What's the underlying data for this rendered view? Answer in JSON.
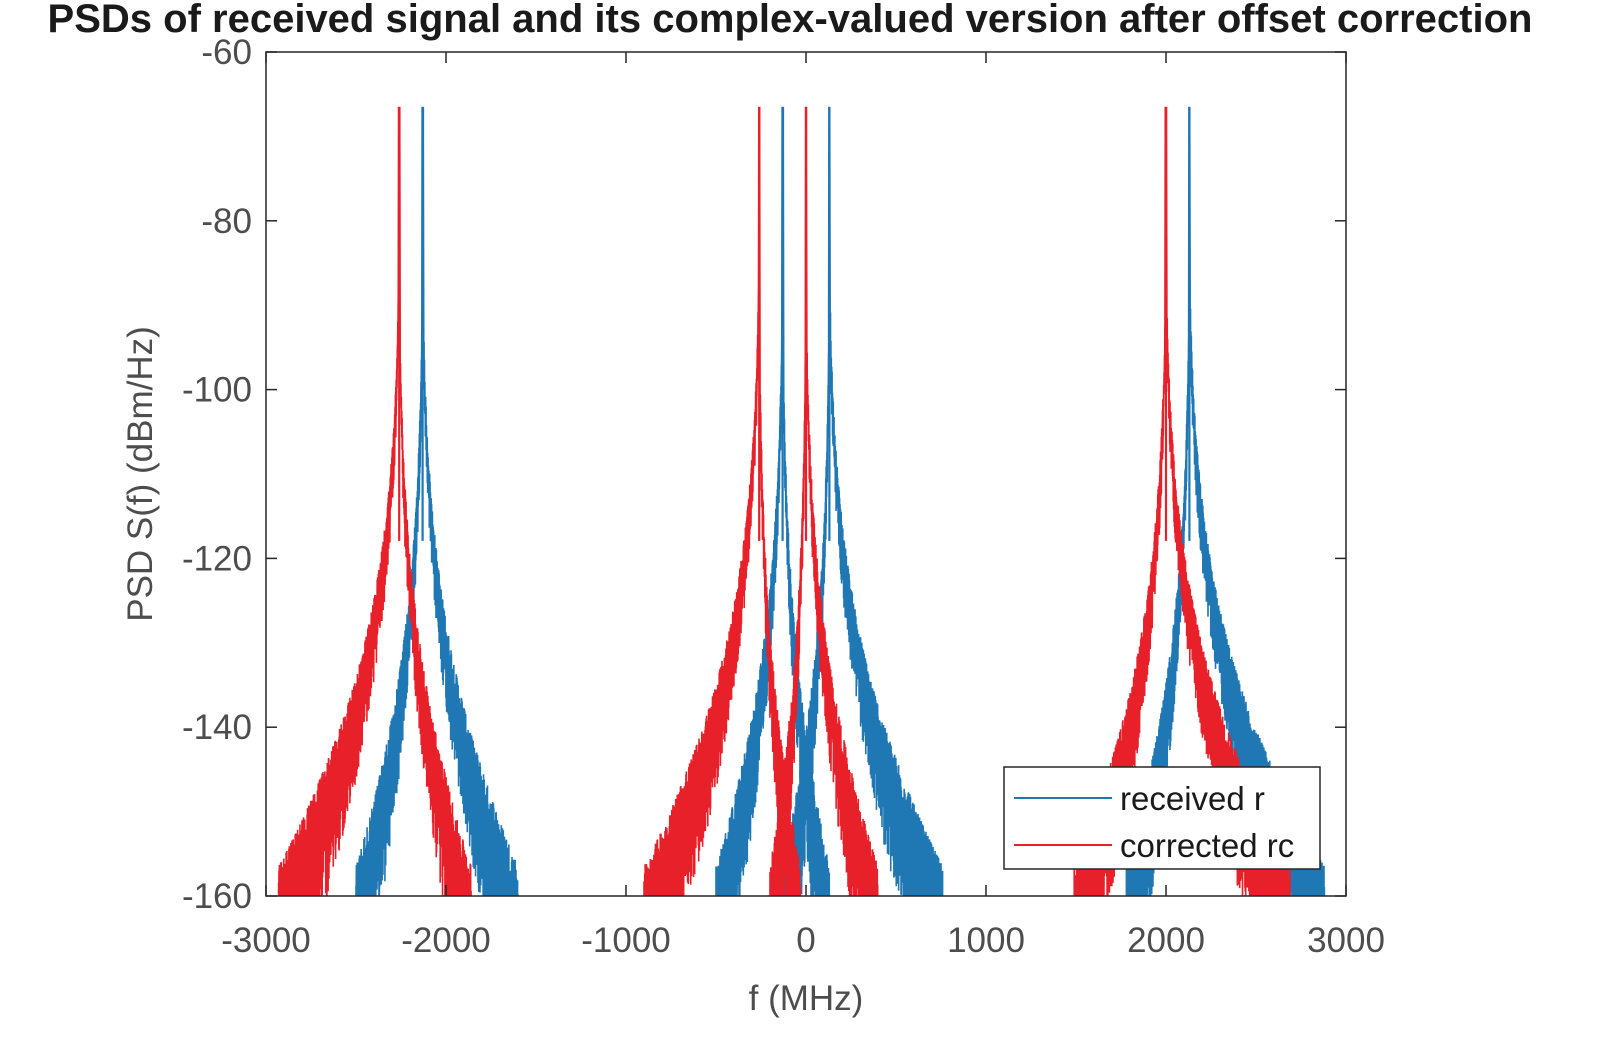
{
  "chart_data": {
    "type": "line",
    "title": "PSDs of received signal and its complex-valued version after offset correction",
    "xlabel": "f (MHz)",
    "ylabel": "PSD S(f) (dBm/Hz)",
    "xlim": [
      -3000,
      3000
    ],
    "ylim": [
      -160,
      -60
    ],
    "xticks": [
      -3000,
      -2000,
      -1000,
      0,
      1000,
      2000,
      3000
    ],
    "yticks": [
      -60,
      -80,
      -100,
      -120,
      -140,
      -160
    ],
    "xtick_labels": [
      "-3000",
      "-2000",
      "-1000",
      "0",
      "1000",
      "2000",
      "3000"
    ],
    "ytick_labels": [
      "-60",
      "-80",
      "-100",
      "-120",
      "-140",
      "-160"
    ],
    "grid": false,
    "legend_position": "bottom-right",
    "series": [
      {
        "name": "received r",
        "color": "#1f77b4",
        "peaks": [
          {
            "center": -2130,
            "peak": -66.5,
            "left_floor": -2500,
            "right_floor": -1600
          },
          {
            "center": -130,
            "peak": -66.5,
            "left_floor": -500,
            "right_floor": 130
          },
          {
            "center": 130,
            "peak": -66.5,
            "left_floor": -130,
            "right_floor": 760
          },
          {
            "center": 2130,
            "peak": -66.5,
            "left_floor": 1780,
            "right_floor": 2880
          }
        ]
      },
      {
        "name": "corrected rc",
        "color": "#e8202a",
        "peaks": [
          {
            "center": -2260,
            "peak": -66.5,
            "left_floor": -2930,
            "right_floor": -1860
          },
          {
            "center": -260,
            "peak": -66.5,
            "left_floor": -900,
            "right_floor": -30
          },
          {
            "center": 0,
            "peak": -66.5,
            "left_floor": -200,
            "right_floor": 400
          },
          {
            "center": 2000,
            "peak": -66.5,
            "left_floor": 1490,
            "right_floor": 2690
          }
        ]
      }
    ]
  }
}
